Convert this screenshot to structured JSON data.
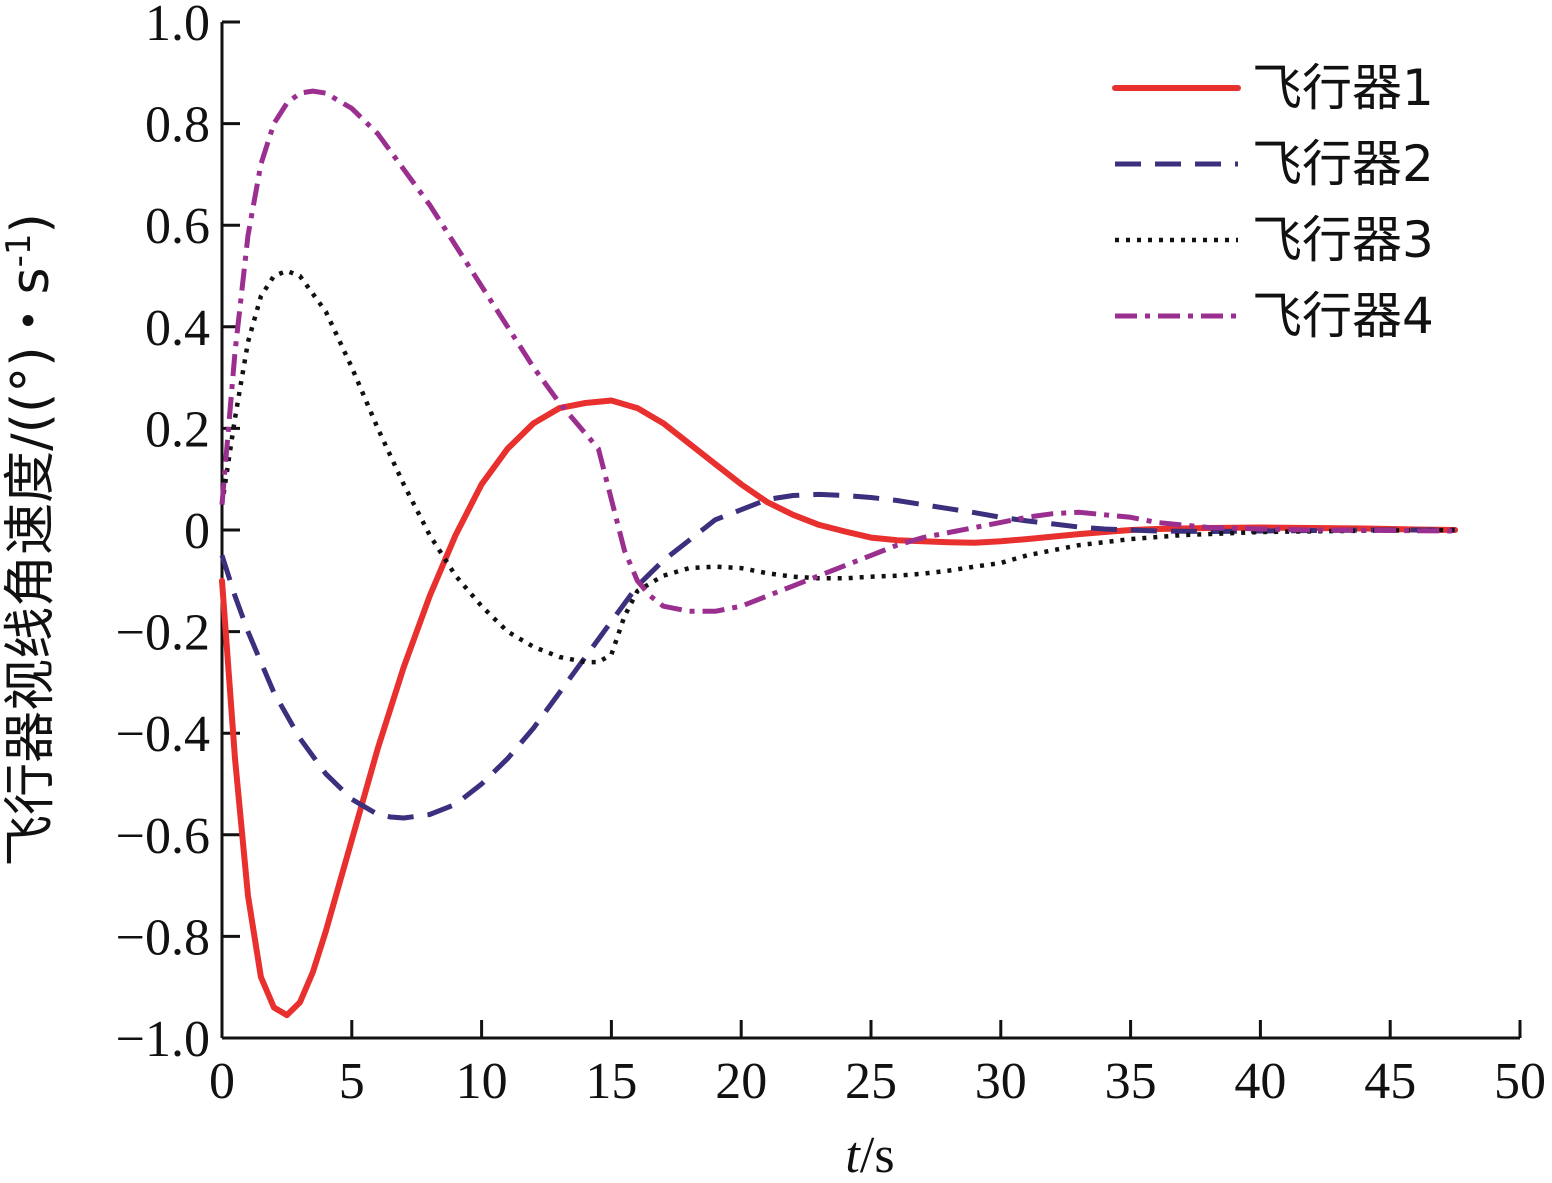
{
  "chart_data": {
    "type": "line",
    "title": "",
    "xlabel_italic": "t",
    "xlabel_unit": "/s",
    "ylabel_main": "飞行器视线角速度/((°)・s",
    "ylabel_sup": "-1",
    "ylabel_close": ")",
    "xlim": [
      0,
      50
    ],
    "ylim": [
      -1.0,
      1.0
    ],
    "xticks": [
      0,
      5,
      10,
      15,
      20,
      25,
      30,
      35,
      40,
      45,
      50
    ],
    "xtick_labels": [
      "0",
      "5",
      "10",
      "15",
      "20",
      "25",
      "30",
      "35",
      "40",
      "45",
      "50"
    ],
    "yticks": [
      -1.0,
      -0.8,
      -0.6,
      -0.4,
      -0.2,
      0,
      0.2,
      0.4,
      0.6,
      0.8,
      1.0
    ],
    "ytick_labels": [
      "−1.0",
      "−0.8",
      "−0.6",
      "−0.4",
      "−0.2",
      "0",
      "0.2",
      "0.4",
      "0.6",
      "0.8",
      "1.0"
    ],
    "grid": false,
    "legend_position": "top-right",
    "series": [
      {
        "name": "飞行器1",
        "color": "#e8302e",
        "style": "solid",
        "x": [
          0,
          0.5,
          1,
          1.5,
          2,
          2.5,
          3,
          3.5,
          4,
          5,
          6,
          7,
          8,
          9,
          10,
          11,
          12,
          13,
          14,
          15,
          16,
          17,
          18,
          19,
          20,
          21,
          22,
          23,
          24,
          25,
          26,
          27,
          28,
          29,
          30,
          31,
          32,
          33,
          34,
          35,
          36,
          38,
          40,
          42,
          44,
          46,
          47.5
        ],
        "y": [
          -0.1,
          -0.45,
          -0.72,
          -0.88,
          -0.94,
          -0.955,
          -0.93,
          -0.87,
          -0.79,
          -0.61,
          -0.43,
          -0.27,
          -0.13,
          -0.01,
          0.09,
          0.16,
          0.21,
          0.24,
          0.25,
          0.255,
          0.24,
          0.21,
          0.17,
          0.13,
          0.09,
          0.055,
          0.03,
          0.01,
          -0.003,
          -0.015,
          -0.02,
          -0.022,
          -0.024,
          -0.025,
          -0.022,
          -0.018,
          -0.013,
          -0.008,
          -0.004,
          0,
          0.002,
          0.004,
          0.005,
          0.004,
          0.003,
          0.001,
          0
        ]
      },
      {
        "name": "飞行器2",
        "color": "#3b2f7e",
        "style": "dashed",
        "x": [
          0,
          0.5,
          1,
          1.5,
          2,
          3,
          4,
          5,
          6,
          6.5,
          7,
          8,
          9,
          10,
          11,
          12,
          13,
          14,
          15,
          16,
          17,
          18,
          19,
          20,
          21,
          22,
          23,
          24,
          25,
          26,
          27,
          28,
          29,
          30,
          31,
          32,
          33,
          34,
          35,
          36,
          38,
          40,
          42,
          44,
          46,
          47.5
        ],
        "y": [
          -0.05,
          -0.13,
          -0.2,
          -0.26,
          -0.32,
          -0.41,
          -0.48,
          -0.53,
          -0.56,
          -0.565,
          -0.567,
          -0.56,
          -0.54,
          -0.5,
          -0.45,
          -0.39,
          -0.32,
          -0.25,
          -0.18,
          -0.11,
          -0.06,
          -0.02,
          0.02,
          0.04,
          0.06,
          0.068,
          0.07,
          0.068,
          0.064,
          0.058,
          0.05,
          0.042,
          0.034,
          0.025,
          0.018,
          0.012,
          0.006,
          0.002,
          0,
          -0.002,
          -0.003,
          -0.002,
          -0.001,
          0,
          0,
          0
        ]
      },
      {
        "name": "飞行器3",
        "color": "#111111",
        "style": "dotted",
        "x": [
          0,
          0.5,
          1,
          1.5,
          2,
          2.5,
          3,
          4,
          5,
          6,
          7,
          8,
          9,
          10,
          11,
          12,
          13,
          14,
          14.5,
          15,
          15.5,
          16,
          17,
          18,
          19,
          20,
          21,
          22,
          23,
          24,
          25,
          26,
          27,
          28,
          29,
          30,
          31,
          32,
          33,
          35,
          37,
          40,
          43,
          45,
          47.5
        ],
        "y": [
          0.05,
          0.22,
          0.37,
          0.46,
          0.5,
          0.51,
          0.5,
          0.43,
          0.32,
          0.2,
          0.09,
          -0.01,
          -0.09,
          -0.15,
          -0.2,
          -0.23,
          -0.25,
          -0.26,
          -0.26,
          -0.245,
          -0.17,
          -0.12,
          -0.09,
          -0.075,
          -0.072,
          -0.075,
          -0.085,
          -0.092,
          -0.095,
          -0.095,
          -0.092,
          -0.09,
          -0.086,
          -0.08,
          -0.072,
          -0.065,
          -0.05,
          -0.04,
          -0.03,
          -0.018,
          -0.01,
          -0.004,
          -0.002,
          -0.001,
          0
        ]
      },
      {
        "name": "飞行器4",
        "color": "#9b2f8f",
        "style": "dashdot",
        "x": [
          0,
          0.5,
          1,
          1.5,
          2,
          2.5,
          3,
          3.5,
          4,
          5,
          6,
          7,
          8,
          9,
          10,
          11,
          12,
          13,
          14,
          14.5,
          15,
          15.5,
          16,
          16.5,
          17,
          18,
          19,
          20,
          21,
          22,
          23,
          24,
          25,
          26,
          27,
          28,
          29,
          30,
          31,
          32,
          33,
          34,
          35,
          36,
          38,
          40,
          42,
          45,
          47.5
        ],
        "y": [
          0.05,
          0.35,
          0.58,
          0.72,
          0.8,
          0.84,
          0.86,
          0.864,
          0.86,
          0.83,
          0.78,
          0.71,
          0.64,
          0.56,
          0.48,
          0.4,
          0.32,
          0.25,
          0.19,
          0.16,
          0.06,
          -0.04,
          -0.1,
          -0.13,
          -0.15,
          -0.16,
          -0.16,
          -0.15,
          -0.13,
          -0.11,
          -0.09,
          -0.07,
          -0.05,
          -0.03,
          -0.015,
          -0.005,
          0.005,
          0.015,
          0.025,
          0.032,
          0.035,
          0.03,
          0.025,
          0.015,
          0.005,
          0.002,
          0,
          -0.001,
          -0.002
        ]
      }
    ]
  }
}
